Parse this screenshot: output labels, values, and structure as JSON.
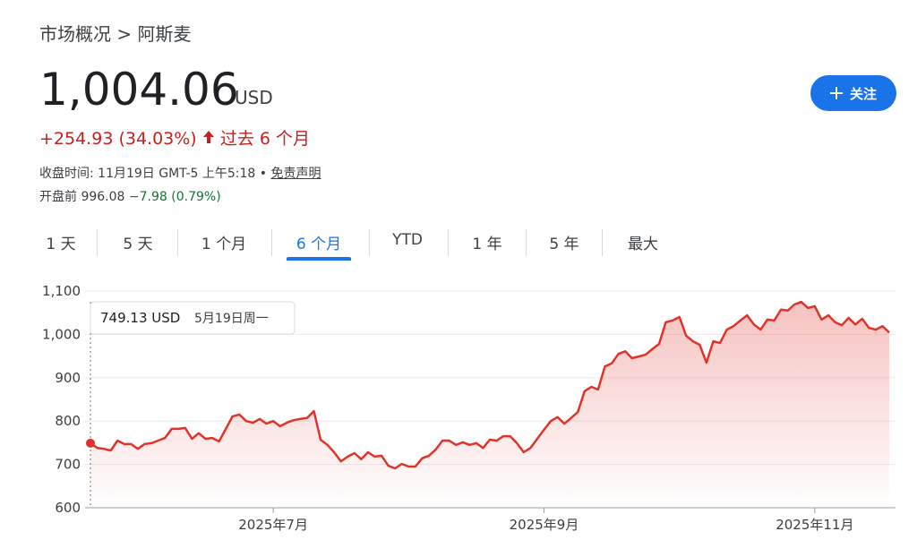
{
  "header": {
    "breadcrumb": [
      "市场概况",
      "阿斯麦"
    ],
    "separator": ">"
  },
  "quote": {
    "price": "1,004.06",
    "currency": "USD",
    "change": "+254.93 (34.03%)",
    "period": "过去 6 个月",
    "close_time": "收盘时间: 11月19日 GMT-5 上午5:18",
    "bullet": "•",
    "disclaimer": "免责声明",
    "premarket_label": "开盘前",
    "premarket_price": "996.08",
    "premarket_change": "−7.98 (0.79%)"
  },
  "follow_button": {
    "label": "关注"
  },
  "tabs": [
    "1 天",
    "5 天",
    "1 个月",
    "6 个月",
    "YTD",
    "1 年",
    "5 年",
    "最大"
  ],
  "active_tab": 3,
  "chart_data": {
    "type": "line",
    "color": "#e0342b",
    "grid": true,
    "values": [
      749.13,
      738,
      736,
      732,
      755,
      747,
      747,
      736,
      747,
      749,
      755,
      761,
      782,
      782,
      784,
      759,
      772,
      759,
      761,
      753,
      782,
      811,
      815,
      800,
      796,
      805,
      794,
      800,
      788,
      796,
      802,
      805,
      807,
      823,
      757,
      745,
      728,
      707,
      718,
      726,
      712,
      728,
      718,
      720,
      697,
      691,
      701,
      695,
      695,
      714,
      720,
      734,
      755,
      755,
      745,
      751,
      745,
      749,
      738,
      757,
      755,
      765,
      765,
      749,
      728,
      738,
      759,
      780,
      800,
      809,
      794,
      807,
      821,
      869,
      879,
      873,
      926,
      933,
      955,
      961,
      945,
      949,
      953,
      966,
      978,
      1028,
      1032,
      1040,
      997,
      984,
      976,
      935,
      984,
      980,
      1011,
      1019,
      1032,
      1044,
      1023,
      1011,
      1034,
      1032,
      1057,
      1055,
      1069,
      1075,
      1061,
      1065,
      1034,
      1044,
      1028,
      1021,
      1038,
      1023,
      1036,
      1015,
      1011,
      1019,
      1004.06
    ],
    "xlim": [
      0,
      118
    ],
    "xticks": [
      {
        "value": 27,
        "label": "2025年7月"
      },
      {
        "value": 67,
        "label": "2025年9月"
      },
      {
        "value": 107,
        "label": "2025年11月"
      }
    ],
    "ylim": [
      600,
      1100
    ],
    "yticks": [
      600,
      700,
      800,
      900,
      {
        "value": 1000,
        "label": "1,000"
      },
      {
        "value": 1100,
        "label": "1,100"
      }
    ],
    "tooltip": {
      "value": "749.13 USD",
      "date": "5月19日周一"
    }
  }
}
